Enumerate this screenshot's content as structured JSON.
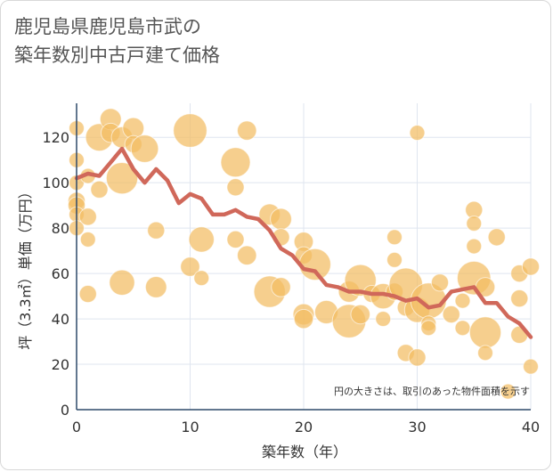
{
  "title_lines": [
    "鹿児島県鹿児島市武の",
    "築年数別中古戸建て価格"
  ],
  "note": "円の大きさは、取引のあった物件面積を示す",
  "colors": {
    "bubble": "#f2bd62",
    "line": "#d0685a",
    "grid": "#dfe5ef",
    "axis": "#2f4a6a"
  },
  "chart_data": {
    "type": "scatter",
    "title": "鹿児島県鹿児島市武の築年数別中古戸建て価格",
    "xlabel": "築年数（年）",
    "ylabel": "坪（3.3㎡）単価（万円）",
    "xlim": [
      0,
      40
    ],
    "ylim": [
      0,
      135
    ],
    "xticks": [
      0,
      10,
      20,
      30,
      40
    ],
    "yticks": [
      0,
      20,
      40,
      60,
      80,
      100,
      120
    ],
    "grid": true,
    "series": [
      {
        "kind": "bubble",
        "points": [
          {
            "x": 0,
            "y": 124,
            "s": 3
          },
          {
            "x": 0,
            "y": 110,
            "s": 3
          },
          {
            "x": 0,
            "y": 100,
            "s": 3
          },
          {
            "x": 0,
            "y": 92,
            "s": 4
          },
          {
            "x": 0,
            "y": 90,
            "s": 4
          },
          {
            "x": 0,
            "y": 86,
            "s": 3
          },
          {
            "x": 0,
            "y": 80,
            "s": 3
          },
          {
            "x": 1,
            "y": 103,
            "s": 3
          },
          {
            "x": 1,
            "y": 85,
            "s": 4
          },
          {
            "x": 1,
            "y": 75,
            "s": 3
          },
          {
            "x": 1,
            "y": 51,
            "s": 4
          },
          {
            "x": 2,
            "y": 120,
            "s": 9
          },
          {
            "x": 2,
            "y": 97,
            "s": 4
          },
          {
            "x": 3,
            "y": 128,
            "s": 6
          },
          {
            "x": 3,
            "y": 122,
            "s": 5
          },
          {
            "x": 4,
            "y": 120,
            "s": 6
          },
          {
            "x": 4,
            "y": 102,
            "s": 11
          },
          {
            "x": 4,
            "y": 56,
            "s": 8
          },
          {
            "x": 5,
            "y": 124,
            "s": 6
          },
          {
            "x": 5,
            "y": 117,
            "s": 4
          },
          {
            "x": 6,
            "y": 115,
            "s": 9
          },
          {
            "x": 7,
            "y": 79,
            "s": 4
          },
          {
            "x": 7,
            "y": 54,
            "s": 6
          },
          {
            "x": 10,
            "y": 123,
            "s": 12
          },
          {
            "x": 10,
            "y": 63,
            "s": 5
          },
          {
            "x": 11,
            "y": 75,
            "s": 8
          },
          {
            "x": 11,
            "y": 58,
            "s": 3
          },
          {
            "x": 14,
            "y": 109,
            "s": 10
          },
          {
            "x": 14,
            "y": 98,
            "s": 4
          },
          {
            "x": 14,
            "y": 75,
            "s": 4
          },
          {
            "x": 15,
            "y": 123,
            "s": 5
          },
          {
            "x": 15,
            "y": 68,
            "s": 5
          },
          {
            "x": 17,
            "y": 86,
            "s": 6
          },
          {
            "x": 17,
            "y": 52,
            "s": 11
          },
          {
            "x": 18,
            "y": 84,
            "s": 6
          },
          {
            "x": 18,
            "y": 76,
            "s": 4
          },
          {
            "x": 18,
            "y": 54,
            "s": 5
          },
          {
            "x": 20,
            "y": 74,
            "s": 5
          },
          {
            "x": 20,
            "y": 68,
            "s": 4
          },
          {
            "x": 20,
            "y": 42,
            "s": 6
          },
          {
            "x": 20,
            "y": 40,
            "s": 5
          },
          {
            "x": 21,
            "y": 64,
            "s": 11
          },
          {
            "x": 22,
            "y": 43,
            "s": 7
          },
          {
            "x": 24,
            "y": 52,
            "s": 6
          },
          {
            "x": 24,
            "y": 39,
            "s": 12
          },
          {
            "x": 25,
            "y": 57,
            "s": 11
          },
          {
            "x": 25,
            "y": 42,
            "s": 5
          },
          {
            "x": 26,
            "y": 51,
            "s": 4
          },
          {
            "x": 27,
            "y": 50,
            "s": 8
          },
          {
            "x": 27,
            "y": 40,
            "s": 3
          },
          {
            "x": 28,
            "y": 76,
            "s": 3
          },
          {
            "x": 28,
            "y": 66,
            "s": 3
          },
          {
            "x": 28,
            "y": 52,
            "s": 4
          },
          {
            "x": 29,
            "y": 55,
            "s": 12
          },
          {
            "x": 29,
            "y": 45,
            "s": 4
          },
          {
            "x": 29,
            "y": 25,
            "s": 4
          },
          {
            "x": 30,
            "y": 122,
            "s": 3
          },
          {
            "x": 30,
            "y": 44,
            "s": 8
          },
          {
            "x": 30,
            "y": 23,
            "s": 4
          },
          {
            "x": 31,
            "y": 48,
            "s": 13
          },
          {
            "x": 31,
            "y": 38,
            "s": 3
          },
          {
            "x": 31,
            "y": 36,
            "s": 3
          },
          {
            "x": 32,
            "y": 56,
            "s": 4
          },
          {
            "x": 33,
            "y": 42,
            "s": 4
          },
          {
            "x": 34,
            "y": 48,
            "s": 3
          },
          {
            "x": 34,
            "y": 36,
            "s": 3
          },
          {
            "x": 35,
            "y": 88,
            "s": 4
          },
          {
            "x": 35,
            "y": 82,
            "s": 3
          },
          {
            "x": 35,
            "y": 72,
            "s": 3
          },
          {
            "x": 35,
            "y": 58,
            "s": 12
          },
          {
            "x": 36,
            "y": 54,
            "s": 5
          },
          {
            "x": 36,
            "y": 34,
            "s": 11
          },
          {
            "x": 36,
            "y": 25,
            "s": 3
          },
          {
            "x": 37,
            "y": 76,
            "s": 4
          },
          {
            "x": 38,
            "y": 8,
            "s": 3
          },
          {
            "x": 39,
            "y": 60,
            "s": 4
          },
          {
            "x": 39,
            "y": 49,
            "s": 4
          },
          {
            "x": 39,
            "y": 33,
            "s": 4
          },
          {
            "x": 40,
            "y": 63,
            "s": 4
          },
          {
            "x": 40,
            "y": 19,
            "s": 3
          }
        ]
      },
      {
        "kind": "line",
        "x": [
          0,
          1,
          2,
          3,
          4,
          5,
          6,
          7,
          8,
          9,
          10,
          11,
          12,
          13,
          14,
          15,
          16,
          17,
          18,
          19,
          20,
          21,
          22,
          23,
          24,
          25,
          26,
          27,
          28,
          29,
          30,
          31,
          32,
          33,
          34,
          35,
          36,
          37,
          38,
          39,
          40
        ],
        "y": [
          102,
          104,
          103,
          109,
          115,
          106,
          100,
          106,
          101,
          91,
          95,
          93,
          86,
          86,
          88,
          85,
          84,
          79,
          71,
          68,
          62,
          61,
          55,
          54,
          52,
          52,
          51,
          51,
          50,
          48,
          49,
          45,
          46,
          52,
          53,
          54,
          47,
          47,
          41,
          38,
          32
        ]
      }
    ]
  }
}
